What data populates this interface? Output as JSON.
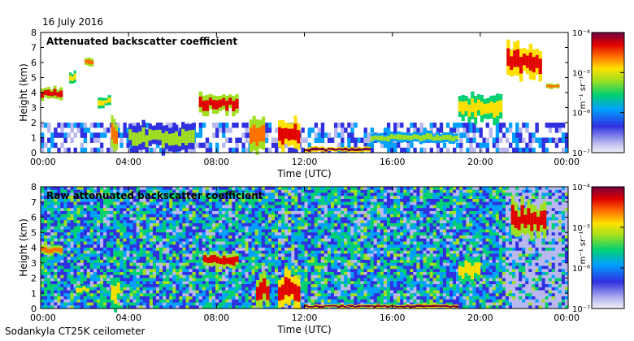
{
  "date_label": "16 July 2016",
  "footer": "Sodankyla CT25K ceilometer",
  "chart_data": [
    {
      "type": "heatmap",
      "title": "Attenuated backscatter coefficient",
      "xlabel": "Time (UTC)",
      "ylabel": "Height (km)",
      "xticks": [
        "00:00",
        "04:00",
        "08:00",
        "12:00",
        "16:00",
        "20:00",
        "00:00"
      ],
      "yticks": [
        "0",
        "1",
        "2",
        "3",
        "4",
        "5",
        "6",
        "7",
        "8"
      ],
      "xlim_hours": [
        0,
        24
      ],
      "ylim_km": [
        0,
        8
      ],
      "colorbar": {
        "label": "m⁻¹ sr⁻¹",
        "ticks": [
          "10⁻⁷",
          "10⁻⁶",
          "10⁻⁵",
          "10⁻⁴"
        ],
        "range_log10": [
          -7,
          -4
        ]
      },
      "features": [
        {
          "t0": 0.0,
          "t1": 1.0,
          "h0": 3.5,
          "h1": 4.4,
          "level": 0.85
        },
        {
          "t0": 1.3,
          "t1": 1.6,
          "h0": 4.5,
          "h1": 5.5,
          "level": 0.7
        },
        {
          "t0": 2.0,
          "t1": 2.4,
          "h0": 5.7,
          "h1": 6.3,
          "level": 0.75
        },
        {
          "t0": 2.6,
          "t1": 3.2,
          "h0": 3.0,
          "h1": 3.8,
          "level": 0.7
        },
        {
          "t0": 3.2,
          "t1": 3.5,
          "h0": 0.0,
          "h1": 2.3,
          "level": 0.75
        },
        {
          "t0": 4.0,
          "t1": 7.0,
          "h0": 0.0,
          "h1": 2.0,
          "level": 0.5
        },
        {
          "t0": 7.2,
          "t1": 9.0,
          "h0": 2.5,
          "h1": 4.0,
          "level": 0.85
        },
        {
          "t0": 9.5,
          "t1": 10.2,
          "h0": 0.0,
          "h1": 2.5,
          "level": 0.8
        },
        {
          "t0": 10.8,
          "t1": 11.8,
          "h0": 0.0,
          "h1": 2.3,
          "level": 0.9
        },
        {
          "t0": 12.0,
          "t1": 15.0,
          "h0": 0.0,
          "h1": 0.4,
          "level": 0.95
        },
        {
          "t0": 15.0,
          "t1": 19.0,
          "h0": 0.6,
          "h1": 1.4,
          "level": 0.55
        },
        {
          "t0": 19.0,
          "t1": 21.0,
          "h0": 2.0,
          "h1": 4.0,
          "level": 0.7
        },
        {
          "t0": 21.2,
          "t1": 22.8,
          "h0": 4.8,
          "h1": 7.3,
          "level": 0.9
        },
        {
          "t0": 23.0,
          "t1": 23.6,
          "h0": 4.2,
          "h1": 4.6,
          "level": 0.8
        }
      ]
    },
    {
      "type": "heatmap",
      "title": "Raw attenuated backscatter coefficient",
      "xlabel": "Time (UTC)",
      "ylabel": "Height (km)",
      "xticks": [
        "00:00",
        "04:00",
        "08:00",
        "12:00",
        "16:00",
        "20:00",
        "00:00"
      ],
      "yticks": [
        "0",
        "1",
        "2",
        "3",
        "4",
        "5",
        "6",
        "7",
        "8"
      ],
      "xlim_hours": [
        0,
        24
      ],
      "ylim_km": [
        0,
        8
      ],
      "colorbar": {
        "label": "m⁻¹ sr⁻¹",
        "ticks": [
          "10⁻⁷",
          "10⁻⁶",
          "10⁻⁵",
          "10⁻⁴"
        ],
        "range_log10": [
          -7,
          -4
        ]
      },
      "features": [
        {
          "t0": 0.0,
          "t1": 1.0,
          "h0": 3.5,
          "h1": 4.2,
          "level": 0.8
        },
        {
          "t0": 1.6,
          "t1": 2.2,
          "h0": 0.9,
          "h1": 1.6,
          "level": 0.7
        },
        {
          "t0": 3.2,
          "t1": 3.6,
          "h0": 0.0,
          "h1": 2.3,
          "level": 0.7
        },
        {
          "t0": 7.4,
          "t1": 9.0,
          "h0": 2.6,
          "h1": 3.8,
          "level": 0.85
        },
        {
          "t0": 9.8,
          "t1": 10.4,
          "h0": 0.0,
          "h1": 2.5,
          "level": 0.85
        },
        {
          "t0": 10.8,
          "t1": 11.8,
          "h0": 0.0,
          "h1": 2.4,
          "level": 0.9
        },
        {
          "t0": 12.0,
          "t1": 19.0,
          "h0": 0.0,
          "h1": 0.3,
          "level": 0.95
        },
        {
          "t0": 19.0,
          "t1": 20.0,
          "h0": 1.5,
          "h1": 3.5,
          "level": 0.65
        },
        {
          "t0": 21.4,
          "t1": 23.0,
          "h0": 4.5,
          "h1": 7.2,
          "level": 0.85
        }
      ]
    }
  ]
}
